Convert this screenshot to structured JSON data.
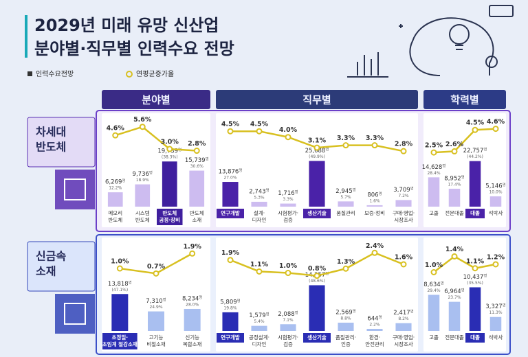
{
  "header": {
    "title": [
      "2029년 미래 유망 신산업",
      "분야별·직무별 인력수요 전망"
    ],
    "legend": [
      "인력수요전망",
      "연평균증가율"
    ],
    "columns": [
      "분야별",
      "직무별",
      "학력별"
    ],
    "rows": [
      [
        "차세대",
        "반도체"
      ],
      [
        "신금속",
        "소재"
      ]
    ]
  },
  "chart_data": [
    {
      "type": "bar",
      "categories": [
        [
          "메모리",
          "반도체"
        ],
        [
          "시스템",
          "반도체"
        ],
        [
          "반도체",
          "공정·장비"
        ],
        [
          "반도체",
          "소재"
        ]
      ],
      "values": [
        6269,
        9736,
        19739,
        15739
      ],
      "value_labels": [
        "6,269",
        "9,736",
        "19,739",
        "15,739"
      ],
      "unit": "명",
      "share_labels": [
        "12.2%",
        "18.9%",
        "(38.3%)",
        "30.6%"
      ],
      "highlight": [
        2
      ],
      "color": "#cdbcf0",
      "highlight_color": "#3f1f9e",
      "ylim": [
        0,
        21000
      ],
      "line_values": [
        4.6,
        5.6,
        3.0,
        2.8
      ],
      "line_labels": [
        "4.6%",
        "5.6%",
        "3.0%",
        "2.8%"
      ],
      "line_color": "#d8c020",
      "y2lim": [
        2.2,
        5.9
      ]
    },
    {
      "type": "bar",
      "categories": [
        [
          "연구개발"
        ],
        [
          "설계·",
          "디자인"
        ],
        [
          "시험평가·",
          "검증"
        ],
        [
          "생산기술"
        ],
        [
          "품질관리"
        ],
        [
          "보증·정비"
        ],
        [
          "구매·영업·",
          "시장조사"
        ]
      ],
      "values": [
        13876,
        2743,
        1716,
        25688,
        2945,
        806,
        3709
      ],
      "value_labels": [
        "13,876",
        "2,743",
        "1,716",
        "25,688",
        "2,945",
        "806",
        "3,709"
      ],
      "unit": "명",
      "share_labels": [
        "27.0%",
        "5.3%",
        "3.3%",
        "(49.9%)",
        "5.7%",
        "1.6%",
        "7.2%"
      ],
      "highlight": [
        0,
        3
      ],
      "color": "#cdbcf0",
      "highlight_color": "#4a22a8",
      "ylim": [
        0,
        27000
      ],
      "line_values": [
        4.5,
        4.5,
        4.0,
        3.1,
        3.3,
        3.3,
        2.8
      ],
      "line_labels": [
        "4.5%",
        "4.5%",
        "4.0%",
        "3.1%",
        "3.3%",
        "3.3%",
        "2.8%"
      ],
      "line_color": "#d8c020",
      "y2lim": [
        2.4,
        5.1
      ]
    },
    {
      "type": "bar",
      "categories": [
        [
          "고졸"
        ],
        [
          "전문대졸"
        ],
        [
          "대졸"
        ],
        [
          "석박사"
        ]
      ],
      "values": [
        14628,
        8952,
        22757,
        5146
      ],
      "value_labels": [
        "14,628",
        "8,952",
        "22,757",
        "5,146"
      ],
      "unit": "명",
      "share_labels": [
        "28.4%",
        "17.4%",
        "(44.2%)",
        "10.0%"
      ],
      "highlight": [
        2
      ],
      "color": "#cdbcf0",
      "highlight_color": "#4a22a8",
      "ylim": [
        0,
        24000
      ],
      "line_values": [
        2.5,
        2.6,
        4.5,
        4.6
      ],
      "line_labels": [
        "2.5%",
        "2.6%",
        "4.5%",
        "4.6%"
      ],
      "line_color": "#d8c020",
      "y2lim": [
        2.2,
        5.0
      ]
    },
    {
      "type": "bar",
      "categories": [
        [
          "초정밀·",
          "초임계 철강소재"
        ],
        [
          "고기능",
          "비철소재"
        ],
        [
          "신기능",
          "복합소재"
        ]
      ],
      "values": [
        13818,
        7310,
        8234
      ],
      "value_labels": [
        "13,818",
        "7,310",
        "8,234"
      ],
      "unit": "명",
      "share_labels": [
        "(47.1%)",
        "24.9%",
        "28.0%"
      ],
      "highlight": [
        0
      ],
      "color": "#a9bff0",
      "highlight_color": "#2a2db4",
      "ylim": [
        0,
        18000
      ],
      "line_values": [
        1.0,
        0.7,
        1.9
      ],
      "line_labels": [
        "1.0%",
        "0.7%",
        "1.9%"
      ],
      "line_color": "#d8c020",
      "y2lim": [
        0.3,
        2.2
      ]
    },
    {
      "type": "bar",
      "categories": [
        [
          "연구개발"
        ],
        [
          "공정설계·",
          "디자인"
        ],
        [
          "시험평가·",
          "검증"
        ],
        [
          "생산기술"
        ],
        [
          "품질관리·",
          "인증"
        ],
        [
          "환경·",
          "안전관리"
        ],
        [
          "구매·영업·",
          "시장조사"
        ]
      ],
      "values": [
        5809,
        1579,
        2088,
        14257,
        2569,
        644,
        2417
      ],
      "value_labels": [
        "5,809",
        "1,579",
        "2,088",
        "14,257",
        "2,569",
        "644",
        "2,417"
      ],
      "unit": "명",
      "share_labels": [
        "19.8%",
        "5.4%",
        "7.1%",
        "(48.6%)",
        "8.8%",
        "2.2%",
        "8.2%"
      ],
      "highlight": [
        0,
        3
      ],
      "color": "#a9bff0",
      "highlight_color": "#2a2db4",
      "ylim": [
        0,
        15000
      ],
      "line_values": [
        1.9,
        1.1,
        1.0,
        0.8,
        1.3,
        2.4,
        1.6
      ],
      "line_labels": [
        "1.9%",
        "1.1%",
        "1.0%",
        "0.8%",
        "1.3%",
        "2.4%",
        "1.6%"
      ],
      "line_color": "#d8c020",
      "y2lim": [
        0.5,
        2.7
      ]
    },
    {
      "type": "bar",
      "categories": [
        [
          "고졸"
        ],
        [
          "전문대졸"
        ],
        [
          "대졸"
        ],
        [
          "석박사"
        ]
      ],
      "values": [
        8634,
        6964,
        10437,
        3327
      ],
      "value_labels": [
        "8,634",
        "6,964",
        "10,437",
        "3,327"
      ],
      "unit": "명",
      "share_labels": [
        "29.4%",
        "23.7%",
        "(35.5%)",
        "11.3%"
      ],
      "highlight": [
        2
      ],
      "color": "#a9bff0",
      "highlight_color": "#2a2db4",
      "ylim": [
        0,
        11500
      ],
      "line_values": [
        1.0,
        1.4,
        1.1,
        1.2
      ],
      "line_labels": [
        "1.0%",
        "1.4%",
        "1.1%",
        "1.2%"
      ],
      "line_color": "#d8c020",
      "y2lim": [
        0.8,
        1.6
      ]
    }
  ]
}
